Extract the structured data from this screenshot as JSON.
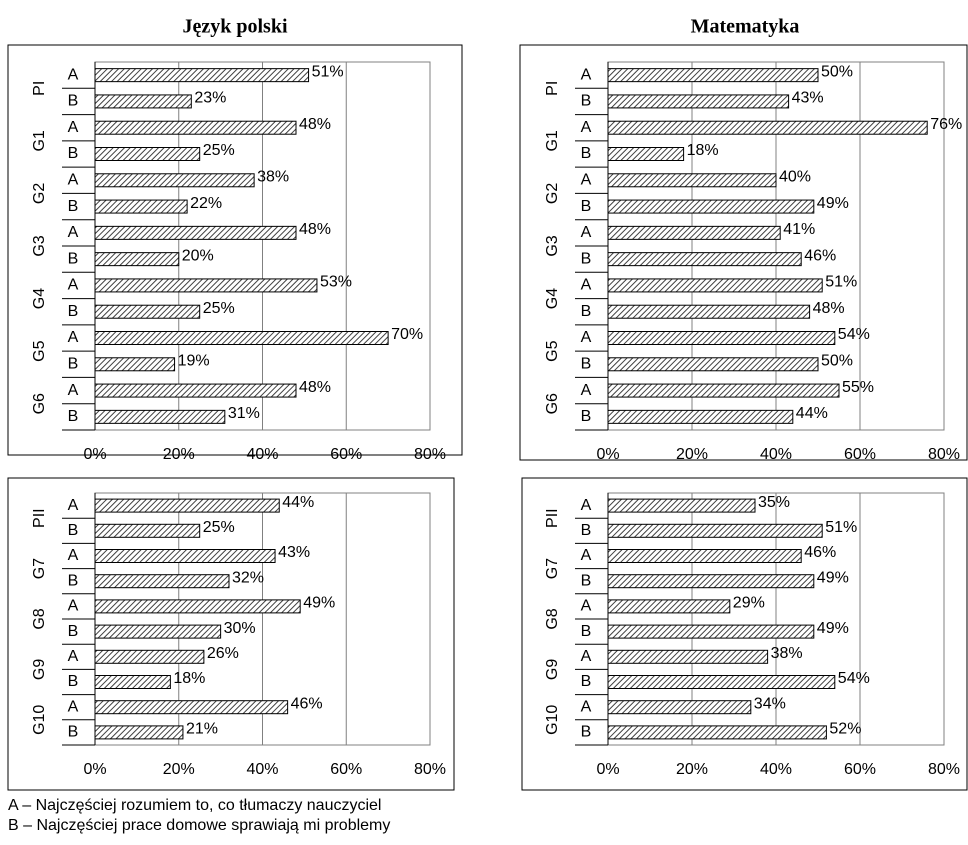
{
  "chart_data": [
    {
      "type": "bar",
      "orientation": "horizontal",
      "title": "Język polski",
      "categories": [
        "PI",
        "G1",
        "G2",
        "G3",
        "G4",
        "G5",
        "G6"
      ],
      "series": [
        {
          "name": "A",
          "color": "#404040",
          "values": [
            51,
            48,
            38,
            48,
            53,
            70,
            48
          ],
          "value_labels": [
            "51%",
            "48%",
            "38%",
            "48%",
            "53%",
            "70%",
            "48%"
          ]
        },
        {
          "name": "B",
          "color": "#404040",
          "values": [
            23,
            25,
            22,
            20,
            25,
            19,
            31
          ],
          "value_labels": [
            "23%",
            "25%",
            "22%",
            "20%",
            "25%",
            "19%",
            "31%"
          ]
        }
      ],
      "xlim": [
        0,
        80
      ],
      "xticks": [
        {
          "value": 0,
          "label": "0%"
        },
        {
          "value": 20,
          "label": "20%"
        },
        {
          "value": 40,
          "label": "40%"
        },
        {
          "value": 60,
          "label": "60%"
        },
        {
          "value": 80,
          "label": "80%"
        }
      ],
      "grid": true
    },
    {
      "type": "bar",
      "orientation": "horizontal",
      "title": "Matematyka",
      "categories": [
        "PI",
        "G1",
        "G2",
        "G3",
        "G4",
        "G5",
        "G6"
      ],
      "series": [
        {
          "name": "A",
          "color": "#404040",
          "values": [
            50,
            76,
            40,
            41,
            51,
            54,
            55
          ],
          "value_labels": [
            "50%",
            "76%",
            "40%",
            "41%",
            "51%",
            "54%",
            "55%"
          ]
        },
        {
          "name": "B",
          "color": "#404040",
          "values": [
            43,
            18,
            49,
            46,
            48,
            50,
            44
          ],
          "value_labels": [
            "43%",
            "18%",
            "49%",
            "46%",
            "48%",
            "50%",
            "44%"
          ]
        }
      ],
      "xlim": [
        0,
        80
      ],
      "xticks": [
        {
          "value": 0,
          "label": "0%"
        },
        {
          "value": 20,
          "label": "20%"
        },
        {
          "value": 40,
          "label": "40%"
        },
        {
          "value": 60,
          "label": "60%"
        },
        {
          "value": 80,
          "label": "80%"
        }
      ],
      "grid": true
    },
    {
      "type": "bar",
      "orientation": "horizontal",
      "categories": [
        "PII",
        "G7",
        "G8",
        "G9",
        "G10"
      ],
      "series": [
        {
          "name": "A",
          "color": "#404040",
          "values": [
            44,
            43,
            49,
            26,
            46
          ],
          "value_labels": [
            "44%",
            "43%",
            "49%",
            "26%",
            "46%"
          ]
        },
        {
          "name": "B",
          "color": "#404040",
          "values": [
            25,
            32,
            30,
            18,
            21
          ],
          "value_labels": [
            "25%",
            "32%",
            "30%",
            "18%",
            "21%"
          ]
        }
      ],
      "xlim": [
        0,
        80
      ],
      "xticks": [
        {
          "value": 0,
          "label": "0%"
        },
        {
          "value": 20,
          "label": "20%"
        },
        {
          "value": 40,
          "label": "40%"
        },
        {
          "value": 60,
          "label": "60%"
        },
        {
          "value": 80,
          "label": "80%"
        }
      ],
      "grid": true
    },
    {
      "type": "bar",
      "orientation": "horizontal",
      "categories": [
        "PII",
        "G7",
        "G8",
        "G9",
        "G10"
      ],
      "series": [
        {
          "name": "A",
          "color": "#404040",
          "values": [
            35,
            46,
            29,
            38,
            34
          ],
          "value_labels": [
            "35%",
            "46%",
            "29%",
            "38%",
            "34%"
          ]
        },
        {
          "name": "B",
          "color": "#404040",
          "values": [
            51,
            49,
            49,
            54,
            52
          ],
          "value_labels": [
            "51%",
            "49%",
            "49%",
            "54%",
            "52%"
          ]
        }
      ],
      "xlim": [
        0,
        80
      ],
      "xticks": [
        {
          "value": 0,
          "label": "0%"
        },
        {
          "value": 20,
          "label": "20%"
        },
        {
          "value": 40,
          "label": "40%"
        },
        {
          "value": 60,
          "label": "60%"
        },
        {
          "value": 80,
          "label": "80%"
        }
      ],
      "grid": true
    }
  ],
  "notes": [
    "A – Najczęściej rozumiem to, co tłumaczy nauczyciel",
    "B – Najczęściej prace domowe sprawiają mi problemy"
  ]
}
